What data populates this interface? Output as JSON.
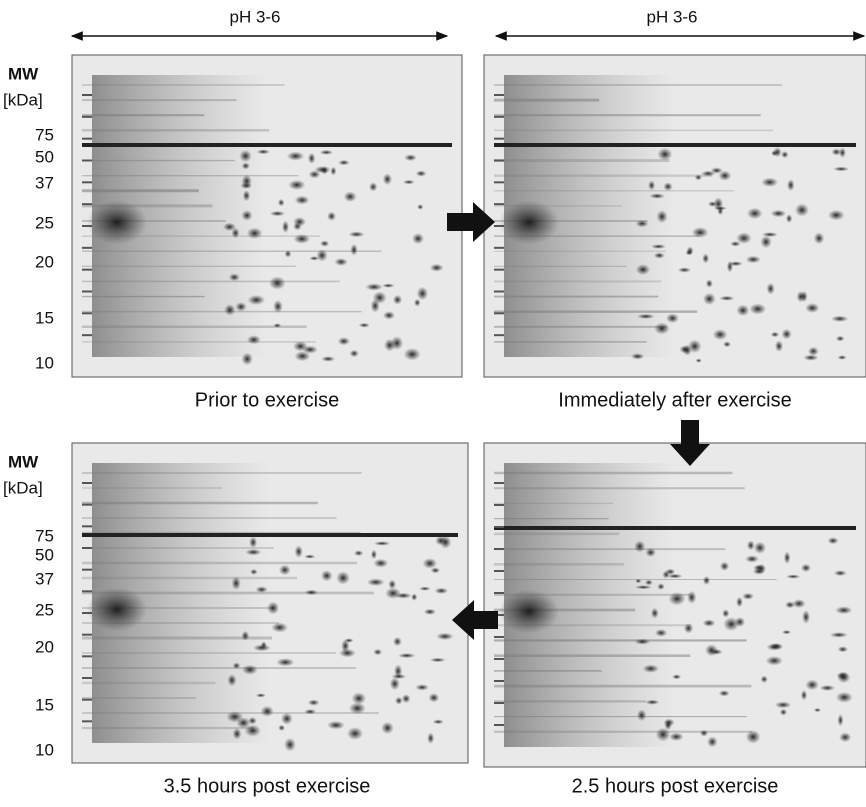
{
  "ph_labels": [
    "pH 3-6",
    "pH 3-6"
  ],
  "mw_axes": [
    {
      "title": "MW",
      "unit": "[kDa]",
      "markers": [
        75,
        50,
        37,
        25,
        20,
        15,
        10
      ]
    },
    {
      "title": "MW",
      "unit": "[kDa]",
      "markers": [
        75,
        50,
        37,
        25,
        20,
        15,
        10
      ]
    }
  ],
  "captions": [
    "Prior to exercise",
    "Immediately after exercise",
    "3.5 hours post exercise",
    "2.5 hours post exercise"
  ]
}
